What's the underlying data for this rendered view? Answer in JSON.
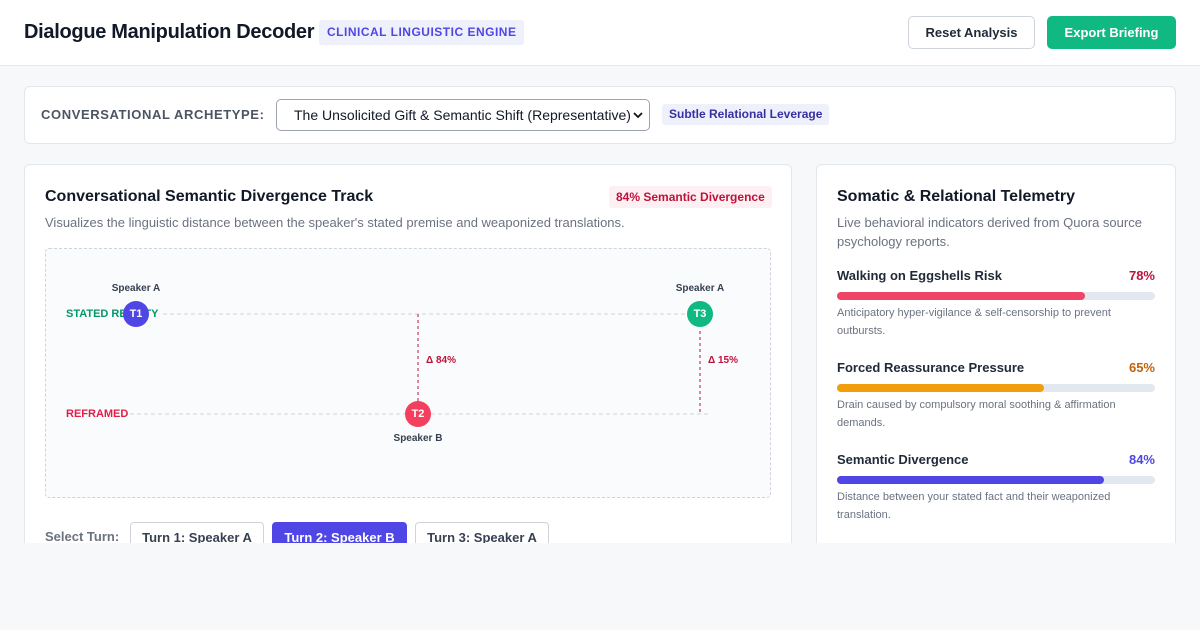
{
  "header": {
    "title": "Dialogue Manipulation Decoder",
    "badge": "CLINICAL LINGUISTIC ENGINE",
    "buttons": [
      "Reset Analysis",
      "Export Briefing"
    ]
  },
  "archetype": {
    "label": "CONVERSATIONAL ARCHETYPE:",
    "selected": "The Unsolicited Gift & Semantic Shift (Representative)",
    "tag": "Subtle Relational Leverage"
  },
  "track": {
    "title": "Conversational Semantic Divergence Track",
    "badge": "84% Semantic Divergence",
    "subtitle": "Visualizes the linguistic distance between the speaker's stated premise and weaponized translations.",
    "rows": [
      "STATED REALITY",
      "REFRAMED"
    ],
    "nodes": [
      {
        "label": "T1",
        "speaker": "Speaker A"
      },
      {
        "label": "T2",
        "speaker": "Speaker B"
      },
      {
        "label": "T3",
        "speaker": "Speaker A"
      }
    ],
    "deltas": [
      "Δ 84%",
      "Δ 15%"
    ],
    "select_label": "Select Turn:",
    "turns": [
      "Turn 1: Speaker A",
      "Turn 2: Speaker B",
      "Turn 3: Speaker A"
    ]
  },
  "telemetry": {
    "title": "Somatic & Relational Telemetry",
    "subtitle": "Live behavioral indicators derived from Quora source psychology reports.",
    "metrics": [
      {
        "name": "Walking on Eggshells Risk",
        "value": 78,
        "value_label": "78%",
        "color": "#ef4466",
        "description": "Anticipatory hyper-vigilance & self-censorship to prevent outbursts."
      },
      {
        "name": "Forced Reassurance Pressure",
        "value": 65,
        "value_label": "65%",
        "color": "#f29e0c",
        "description": "Drain caused by compulsory moral soothing & affirmation demands."
      },
      {
        "name": "Semantic Divergence",
        "value": 84,
        "value_label": "84%",
        "color": "#4f46e5",
        "description": "Distance between your stated fact and their weaponized translation."
      }
    ]
  }
}
